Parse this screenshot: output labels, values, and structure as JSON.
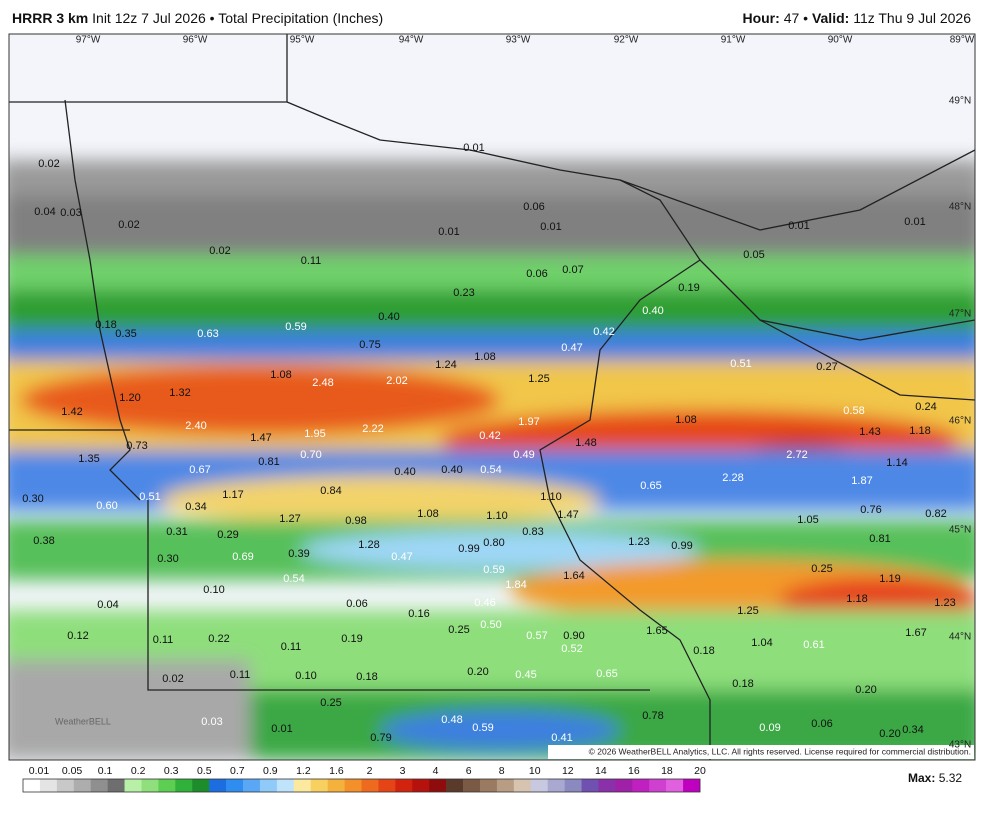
{
  "header": {
    "model": "HRRR 3 km",
    "init": "Init 12z 7 Jul 2026",
    "separator": "•",
    "product": "Total Precipitation (Inches)",
    "hour_label": "Hour:",
    "hour": "47",
    "valid_label": "Valid:",
    "valid": "11z Thu 9 Jul 2026"
  },
  "longitudes": [
    "97°W",
    "96°W",
    "95°W",
    "94°W",
    "93°W",
    "92°W",
    "91°W",
    "90°W",
    "89°W"
  ],
  "latitudes": [
    "49°N",
    "48°N",
    "47°N",
    "46°N",
    "45°N",
    "44°N",
    "43°N"
  ],
  "map_labels": [
    "0.02",
    "0.04",
    "0.03",
    "0.02",
    "0.02",
    "0.11",
    "0.01",
    "0.01",
    "0.06",
    "0.01",
    "0.06",
    "0.07",
    "0.23",
    "0.40",
    "0.19",
    "0.05",
    "0.01",
    "0.01",
    "0.18",
    "0.35",
    "0.63",
    "0.59",
    "0.75",
    "0.42",
    "0.47",
    "0.40",
    "0.51",
    "0.27",
    "1.08",
    "1.24",
    "1.25",
    "1.08",
    "2.48",
    "2.02",
    "1.32",
    "1.20",
    "1.42",
    "2.40",
    "1.47",
    "1.95",
    "2.22",
    "1.97",
    "0.42",
    "1.48",
    "1.08",
    "0.58",
    "0.24",
    "1.43",
    "1.18",
    "2.72",
    "2.28",
    "1.87",
    "1.14",
    "0.73",
    "1.35",
    "0.67",
    "0.81",
    "0.70",
    "0.40",
    "0.40",
    "0.54",
    "0.49",
    "0.65",
    "0.30",
    "0.60",
    "0.51",
    "0.34",
    "1.17",
    "0.84",
    "1.27",
    "0.98",
    "1.08",
    "1.10",
    "1.10",
    "1.47",
    "1.05",
    "0.76",
    "0.82",
    "0.38",
    "0.31",
    "0.29",
    "0.83",
    "1.23",
    "0.99",
    "0.81",
    "0.30",
    "0.69",
    "0.39",
    "1.28",
    "0.47",
    "0.99",
    "0.80",
    "0.54",
    "0.59",
    "1.84",
    "1.64",
    "0.25",
    "1.19",
    "0.10",
    "0.04",
    "0.06",
    "0.16",
    "0.46",
    "1.25",
    "1.18",
    "1.23",
    "0.12",
    "0.11",
    "0.22",
    "0.19",
    "0.25",
    "0.50",
    "0.57",
    "0.90",
    "0.52",
    "1.65",
    "0.18",
    "1.04",
    "0.61",
    "1.67",
    "0.11",
    "0.02",
    "0.11",
    "0.10",
    "0.18",
    "0.20",
    "0.45",
    "0.65",
    "0.18",
    "0.20",
    "0.25",
    "0.01",
    "0.03",
    "0.48",
    "0.59",
    "0.79",
    "0.41",
    "0.78",
    "0.09",
    "0.06",
    "0.34",
    "0.20"
  ],
  "credit": "© 2026 WeatherBELL Analytics, LLC. All rights reserved. License required for commercial distribution.",
  "watermark": "WeatherBELL",
  "colorbar": [
    "0.01",
    "0.05",
    "0.1",
    "0.2",
    "0.3",
    "0.5",
    "0.7",
    "0.9",
    "1.2",
    "1.6",
    "2",
    "3",
    "4",
    "6",
    "8",
    "10",
    "12",
    "14",
    "16",
    "18",
    "20"
  ],
  "max_label": "Max:",
  "max_value": "5.32"
}
